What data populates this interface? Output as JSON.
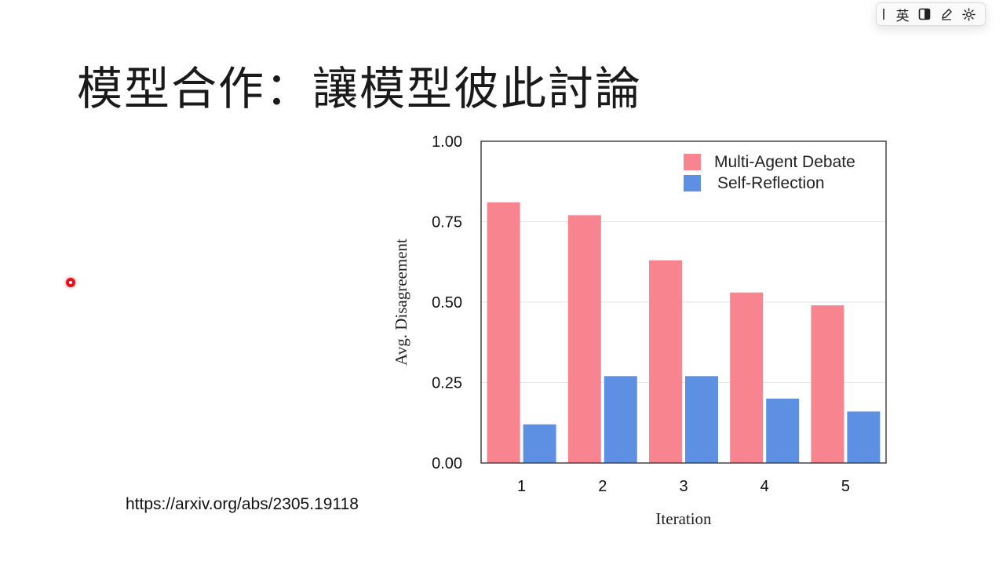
{
  "slide": {
    "title": "模型合作：讓模型彼此討論",
    "source_link": "https://arxiv.org/abs/2305.19118"
  },
  "ime_toolbar": {
    "language": "英",
    "icons": [
      "grip-icon",
      "half-width-icon",
      "pen-icon",
      "gear-icon"
    ]
  },
  "chart_data": {
    "type": "bar",
    "categories": [
      "1",
      "2",
      "3",
      "4",
      "5"
    ],
    "series": [
      {
        "name": "Multi-Agent Debate",
        "color": "#f7848f",
        "values": [
          0.81,
          0.77,
          0.63,
          0.53,
          0.49
        ]
      },
      {
        "name": "Self-Reflection",
        "color": "#5d8fe3",
        "values": [
          0.12,
          0.27,
          0.27,
          0.2,
          0.16
        ]
      }
    ],
    "xlabel": "Iteration",
    "ylabel": "Avg. Disagreement",
    "ylim": [
      0,
      1
    ],
    "yticks": [
      "0.00",
      "0.25",
      "0.50",
      "0.75",
      "1.00"
    ],
    "grid": true,
    "legend_position": "top-right"
  }
}
